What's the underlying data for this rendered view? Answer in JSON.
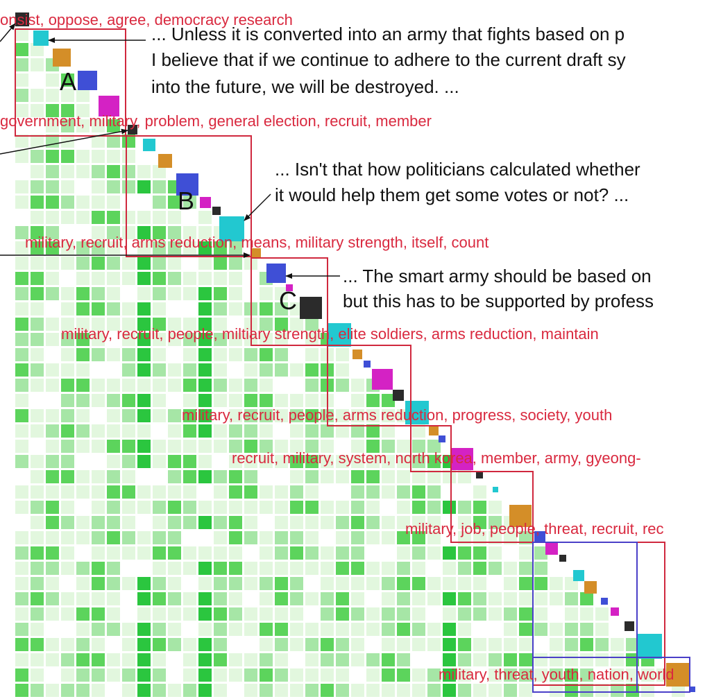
{
  "colors": {
    "keyword_text": "#d9293f",
    "cluster_box": "#d0283e",
    "subcluster_box": "#4a3fc8",
    "heat_light": "#e2f7de",
    "heat_mid": "#a6e6a6",
    "heat_strong": "#5cd45c",
    "heat_peak": "#2bc63f",
    "diag_black": "#2b2b2b",
    "diag_cyan": "#22c8d0",
    "diag_orange": "#d48e28",
    "diag_blue": "#3f4fd6",
    "diag_magenta": "#d422c4",
    "quote_text": "#111111"
  },
  "blocks": [
    {
      "label": "A"
    },
    {
      "label": "B"
    },
    {
      "label": "C"
    }
  ],
  "keywords": [
    {
      "text": "onsist, oppose, agree, democracy research"
    },
    {
      "text": "government, military, problem, general election, recruit, member"
    },
    {
      "text": "military, recruit, arms reduction, means, military strength, itself, count"
    },
    {
      "text": "military, recruit, people, miltiary strength, elite soldiers, arms reduction, maintain"
    },
    {
      "text": "military, recruit, people, arms reduction, progress, society, youth"
    },
    {
      "text": "recruit, military, system, north korea, member, army, gyeong-"
    },
    {
      "text": "military, job, people, threat, recruit, rec"
    },
    {
      "text": "military, threat, youth, nation, world"
    }
  ],
  "quotes": [
    {
      "lines": [
        "... Unless it is converted into an army that fights based on p",
        "I believe that if we continue to adhere to the current draft sy",
        "into the future, we will be destroyed. ..."
      ]
    },
    {
      "lines": [
        "... Isn't that how politicians calculated whether",
        "it would help them get some votes or not? ..."
      ]
    },
    {
      "lines": [
        "... The smart army should be based on",
        "but this has to be supported by profess"
      ]
    }
  ]
}
